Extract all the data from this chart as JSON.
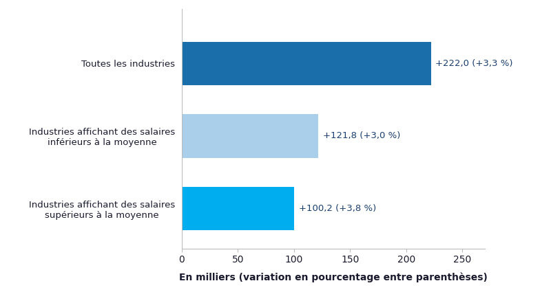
{
  "categories": [
    "Industries affichant des salaires\nsupérieurs à la moyenne",
    "Industries affichant des salaires\ninférieurs à la moyenne",
    "Toutes les industries"
  ],
  "values": [
    100.2,
    121.8,
    222.0
  ],
  "bar_colors": [
    "#00AEEF",
    "#AACFEA",
    "#1A6FAA"
  ],
  "labels": [
    "+100,2 (+3,8 %)",
    "+121,8 (+3,0 %)",
    "+222,0 (+3,3 %)"
  ],
  "xlabel": "En milliers (variation en pourcentage entre parenthèses)",
  "xlim": [
    0,
    270
  ],
  "xticks": [
    0,
    50,
    100,
    150,
    200,
    250
  ],
  "label_color": "#1A3E6F",
  "label_fontsize": 9.5,
  "ylabel_fontsize": 9.5,
  "xlabel_fontsize": 10,
  "tick_fontsize": 10,
  "bar_height": 0.6,
  "background_color": "#FFFFFF",
  "text_color": "#1a1a2e"
}
